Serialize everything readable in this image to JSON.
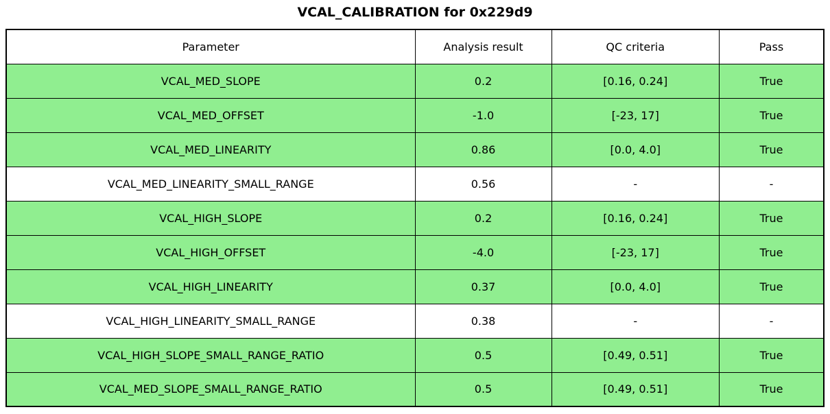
{
  "title": "VCAL_CALIBRATION for 0x229d9",
  "colors": {
    "pass_green": "#90ee90",
    "no_qc_white": "#ffffff",
    "border": "#000000",
    "text": "#000000",
    "background": "#ffffff"
  },
  "chart_data": {
    "type": "table",
    "title": "VCAL_CALIBRATION for 0x229d9",
    "columns": [
      "Parameter",
      "Analysis result",
      "QC criteria",
      "Pass"
    ],
    "column_widths_pct": [
      50.0,
      16.7,
      20.5,
      12.8
    ],
    "rows": [
      [
        "VCAL_MED_SLOPE",
        "0.2",
        "[0.16, 0.24]",
        "True"
      ],
      [
        "VCAL_MED_OFFSET",
        "-1.0",
        "[-23, 17]",
        "True"
      ],
      [
        "VCAL_MED_LINEARITY",
        "0.86",
        "[0.0, 4.0]",
        "True"
      ],
      [
        "VCAL_MED_LINEARITY_SMALL_RANGE",
        "0.56",
        "-",
        "-"
      ],
      [
        "VCAL_HIGH_SLOPE",
        "0.2",
        "[0.16, 0.24]",
        "True"
      ],
      [
        "VCAL_HIGH_OFFSET",
        "-4.0",
        "[-23, 17]",
        "True"
      ],
      [
        "VCAL_HIGH_LINEARITY",
        "0.37",
        "[0.0, 4.0]",
        "True"
      ],
      [
        "VCAL_HIGH_LINEARITY_SMALL_RANGE",
        "0.38",
        "-",
        "-"
      ],
      [
        "VCAL_HIGH_SLOPE_SMALL_RANGE_RATIO",
        "0.5",
        "[0.49, 0.51]",
        "True"
      ],
      [
        "VCAL_MED_SLOPE_SMALL_RANGE_RATIO",
        "0.5",
        "[0.49, 0.51]",
        "True"
      ]
    ],
    "row_highlighted": [
      true,
      true,
      true,
      false,
      true,
      true,
      true,
      false,
      true,
      true
    ],
    "highlight_color": "#90ee90",
    "grid": true,
    "legend_position": "none"
  }
}
